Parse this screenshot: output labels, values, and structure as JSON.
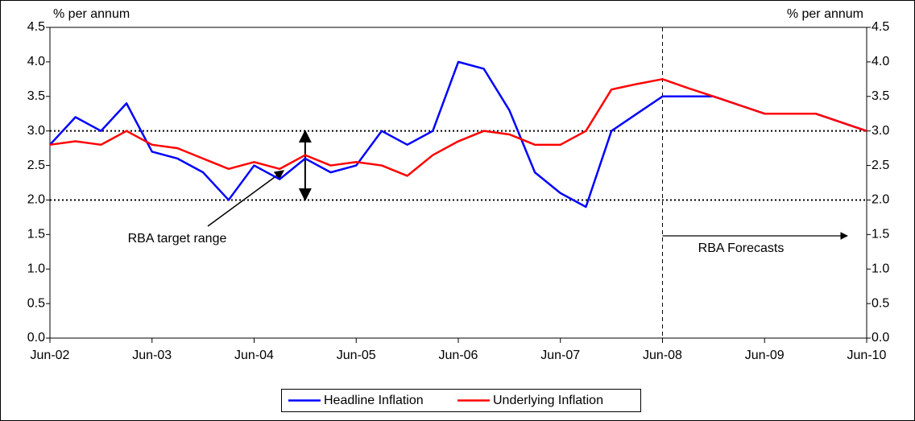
{
  "chart_data": {
    "type": "line",
    "y_label": "% per annum",
    "y2_label": "% per annum",
    "categories": [
      "Jun-02",
      null,
      null,
      null,
      "Jun-03",
      null,
      null,
      null,
      "Jun-04",
      null,
      null,
      null,
      "Jun-05",
      null,
      null,
      null,
      "Jun-06",
      null,
      null,
      null,
      "Jun-07",
      null,
      null,
      null,
      "Jun-08",
      null,
      null,
      null,
      "Jun-09",
      null,
      null,
      null,
      "Jun-10"
    ],
    "series": [
      {
        "name": "Headline Inflation",
        "color": "#0000ff",
        "values": [
          2.8,
          3.2,
          3.0,
          3.4,
          2.7,
          2.6,
          2.4,
          2.0,
          2.5,
          2.3,
          2.6,
          2.4,
          2.5,
          3.0,
          2.8,
          3.0,
          4.0,
          3.9,
          3.3,
          2.4,
          2.1,
          1.9,
          3.0,
          3.25,
          3.5,
          3.5,
          3.5,
          3.375,
          3.25,
          3.25,
          3.25,
          3.125,
          3.0
        ]
      },
      {
        "name": "Underlying Inflation",
        "color": "#ff0000",
        "values": [
          2.8,
          2.85,
          2.8,
          3.0,
          2.8,
          2.75,
          2.6,
          2.45,
          2.55,
          2.45,
          2.65,
          2.5,
          2.55,
          2.5,
          2.35,
          2.65,
          2.85,
          3.0,
          2.95,
          2.8,
          2.8,
          3.0,
          3.6,
          3.68,
          3.75,
          3.62,
          3.5,
          3.375,
          3.25,
          3.25,
          3.25,
          3.125,
          3.0
        ]
      }
    ],
    "ylim": [
      0,
      4.5
    ],
    "yticks": [
      {
        "value": 0,
        "label": "0.0"
      },
      0.5,
      {
        "value": 1,
        "label": "1.0"
      },
      1.5,
      {
        "value": 2,
        "label": "2.0"
      },
      2.5,
      {
        "value": 3,
        "label": "3.0"
      },
      3.5,
      {
        "value": 4,
        "label": "4.0"
      },
      4.5
    ],
    "y2lim": [
      0,
      4.5
    ],
    "y2ticks": [
      {
        "value": 0,
        "label": "0.0"
      },
      0.5,
      {
        "value": 1,
        "label": "1.0"
      },
      1.5,
      {
        "value": 2,
        "label": "2.0"
      },
      2.5,
      {
        "value": 3,
        "label": "3.0"
      },
      3.5,
      {
        "value": 4,
        "label": "4.0"
      },
      4.5
    ],
    "target_range": [
      2,
      3
    ],
    "target_label": "RBA target range",
    "forecast_start": "Jun-08",
    "forecast_label": "RBA Forecasts",
    "legend": "bottom"
  }
}
